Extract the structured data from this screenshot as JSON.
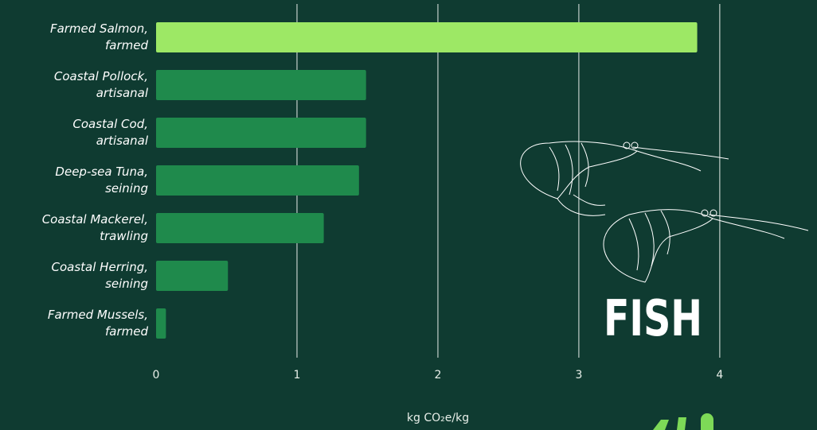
{
  "chart_data": {
    "type": "barh",
    "categories": [
      "Farmed Salmon,\nfarmed",
      "Coastal Pollock,\nartisanal",
      "Coastal Cod,\nartisanal",
      "Deep-sea Tuna,\nseining",
      "Coastal Mackerel,\ntrawling",
      "Coastal Herring,\nseining",
      "Farmed Mussels,\nfarmed"
    ],
    "values": [
      3.84,
      1.49,
      1.49,
      1.44,
      1.19,
      0.51,
      0.07
    ],
    "colors": [
      "#9de865",
      "#1f8a4c",
      "#1f8a4c",
      "#1f8a4c",
      "#1f8a4c",
      "#1f8a4c",
      "#1f8a4c"
    ],
    "xlim": [
      0,
      4.69
    ],
    "xticks": [
      0,
      1,
      2,
      3,
      4
    ],
    "grid": true,
    "xlabel": "kg CO₂e/kg",
    "annotation": "FISH"
  }
}
